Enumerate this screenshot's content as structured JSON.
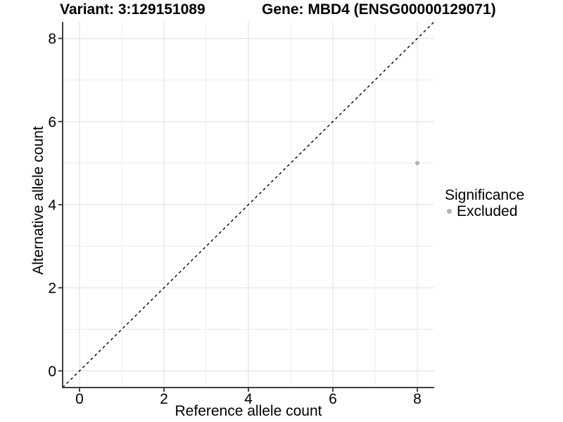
{
  "header": {
    "variant_title": "Variant: 3:129151089",
    "gene_title": "Gene: MBD4 (ENSG00000129071)"
  },
  "legend": {
    "title": "Significance",
    "items": [
      {
        "label": "Excluded",
        "color": "#b2b2b2"
      }
    ]
  },
  "chart_data": {
    "type": "scatter",
    "title": "Variant: 3:129151089 | Gene: MBD4 (ENSG00000129071)",
    "xlabel": "Reference allele count",
    "ylabel": "Alternative allele count",
    "xlim": [
      -0.4,
      8.4
    ],
    "ylim": [
      -0.4,
      8.4
    ],
    "x_ticks": [
      0,
      2,
      4,
      6,
      8
    ],
    "y_ticks": [
      0,
      2,
      4,
      6,
      8
    ],
    "x_minor_ticks": [
      1,
      3,
      5,
      7
    ],
    "y_minor_ticks": [
      1,
      3,
      5,
      7
    ],
    "grid": "major and minor, light gray, white background",
    "legend_position": "right",
    "series": [
      {
        "name": "Excluded",
        "color": "#b2b2b2",
        "marker": "circle",
        "points": [
          {
            "x": 8,
            "y": 5
          }
        ]
      }
    ],
    "reference_line": {
      "kind": "identity y=x",
      "from": [
        -0.4,
        -0.4
      ],
      "to": [
        8.4,
        8.4
      ],
      "style": "dashed",
      "color": "#000000"
    }
  },
  "colors": {
    "background": "#ffffff",
    "grid_major": "#e3e3e3",
    "grid_minor": "#ececec",
    "axis_line": "#3f3f3f",
    "tick": "#333333",
    "text": "#000000",
    "point": "#b2b2b2"
  }
}
